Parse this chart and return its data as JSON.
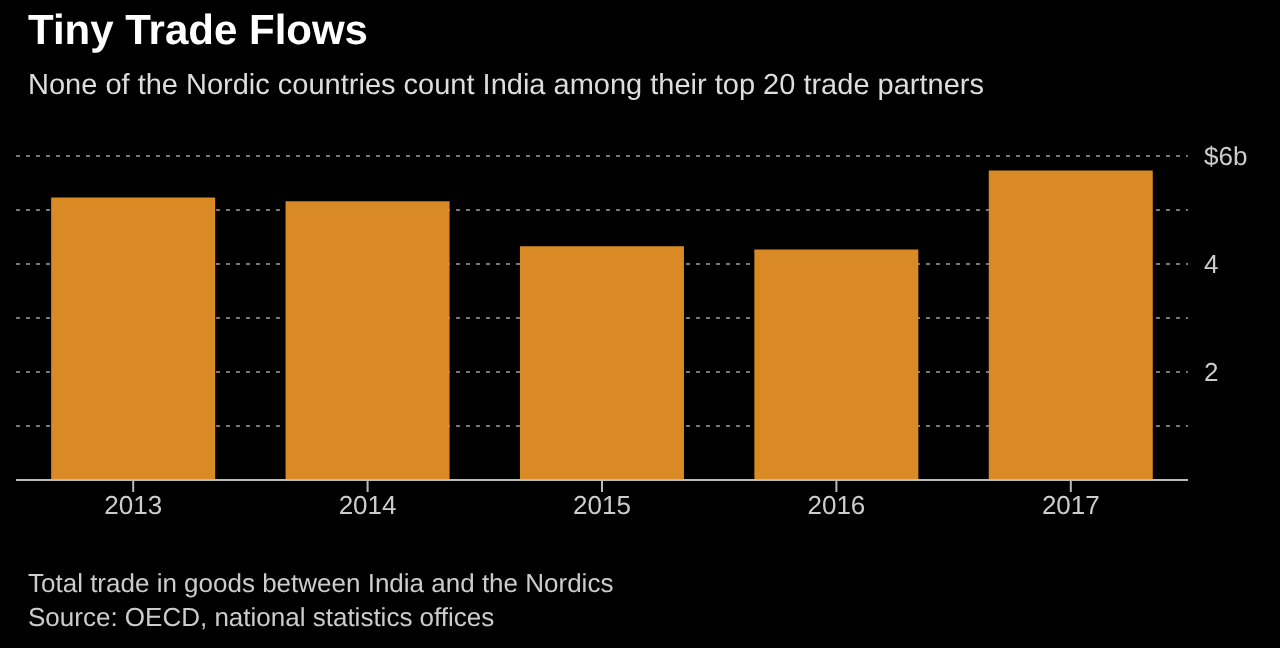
{
  "chart_data": {
    "type": "bar",
    "title": "Tiny Trade Flows",
    "subtitle": "None of the Nordic countries count India among their top 20 trade partners",
    "categories": [
      "2013",
      "2014",
      "2015",
      "2016",
      "2017"
    ],
    "values": [
      5.23,
      5.16,
      4.33,
      4.27,
      5.73
    ],
    "color": "#da8a25",
    "ylim": [
      0,
      6
    ],
    "yticks": [
      {
        "value": 0,
        "label": null
      },
      {
        "value": 1,
        "label": null
      },
      2,
      {
        "value": 3,
        "label": null
      },
      4,
      {
        "value": 5,
        "label": null
      },
      {
        "value": 6,
        "label": "$6b"
      }
    ],
    "grid": "y",
    "annotations": [
      "Total trade in goods between India and the Nordics",
      "Source: OECD, national statistics offices"
    ]
  }
}
